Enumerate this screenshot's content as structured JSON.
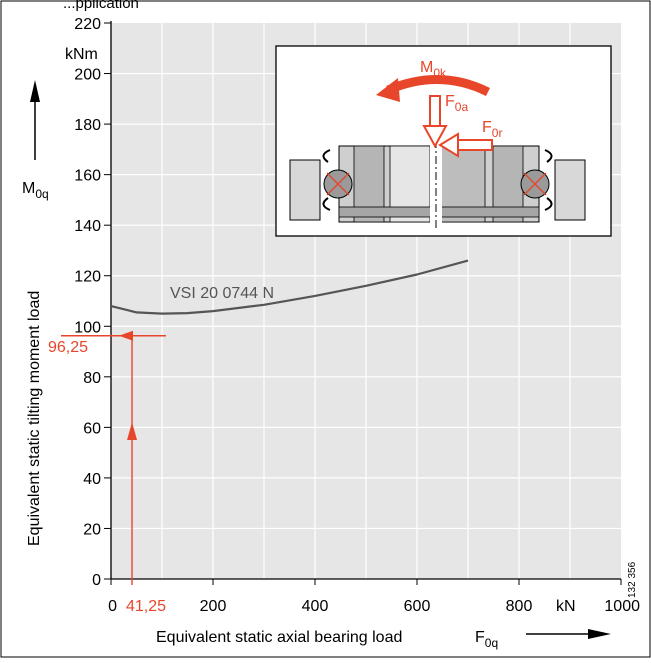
{
  "top_caption": "...pplication",
  "figure_id": "132 356",
  "colors": {
    "accent": "#e8462a",
    "curve": "#555555",
    "plot_bg": "#e6e6e6",
    "grid": "#ffffff",
    "axis": "#000000"
  },
  "chart_data": {
    "type": "line",
    "title": "",
    "xlabel": "Equivalent static axial bearing load",
    "xlabel_symbol": "F",
    "xlabel_sub": "0q",
    "ylabel": "Equivalent static tilting moment load",
    "ylabel_symbol": "M",
    "ylabel_sub": "0q",
    "x_unit": "kN",
    "y_unit": "kNm",
    "xlim": [
      0,
      1000
    ],
    "ylim": [
      0,
      220
    ],
    "x_ticks": [
      0,
      200,
      400,
      600,
      800,
      1000
    ],
    "x_tick_labels": [
      "0",
      "200",
      "400",
      "600",
      "800",
      "1000"
    ],
    "y_ticks": [
      0,
      20,
      40,
      60,
      80,
      100,
      120,
      140,
      160,
      180,
      200,
      220
    ],
    "y_tick_labels": [
      "0",
      "20",
      "40",
      "60",
      "80",
      "100",
      "120",
      "140",
      "160",
      "180",
      "200",
      "220"
    ],
    "grid": true,
    "series": [
      {
        "name": "VSI 20 0744 N",
        "x": [
          0,
          50,
          100,
          150,
          200,
          300,
          400,
          500,
          600,
          700
        ],
        "values": [
          108,
          105.5,
          105,
          105.2,
          106,
          108.5,
          112,
          116,
          120.5,
          126
        ]
      }
    ],
    "annotations": {
      "x_marker": {
        "value": 41.25,
        "label": "41,25"
      },
      "y_marker": {
        "value": 96.25,
        "label": "96,25"
      },
      "inset_labels": {
        "moment": {
          "symbol": "M",
          "sub": "0k"
        },
        "axial": {
          "symbol": "F",
          "sub": "0a"
        },
        "radial": {
          "symbol": "F",
          "sub": "0r"
        }
      }
    }
  }
}
